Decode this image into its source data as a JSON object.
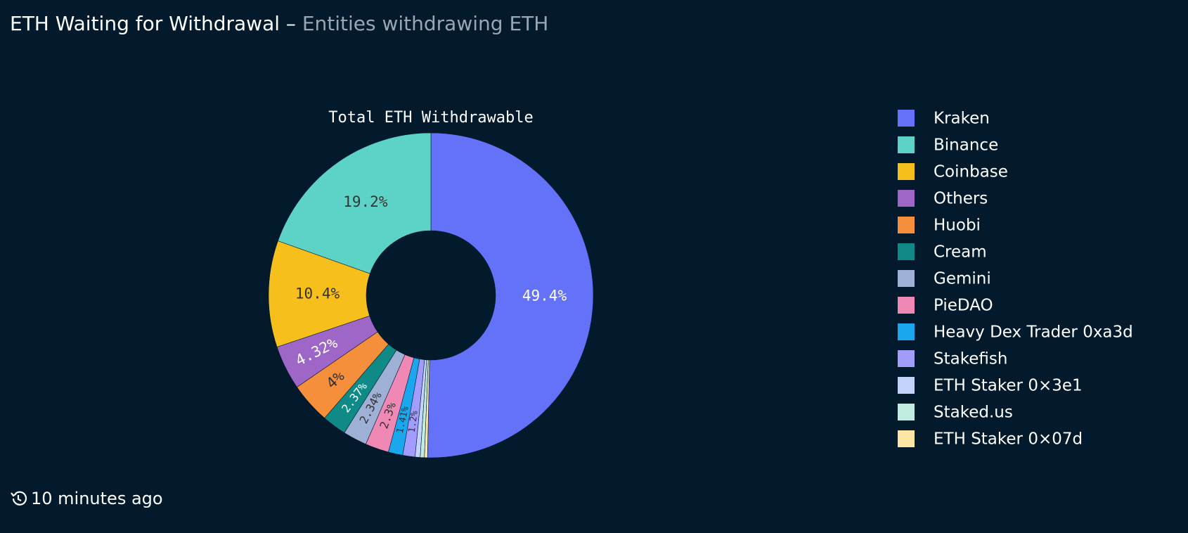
{
  "header": {
    "title": "ETH Waiting for Withdrawal",
    "separator": "–",
    "subtitle": "Entities withdrawing ETH"
  },
  "chart_data": {
    "type": "pie",
    "title": "Total ETH Withdrawable",
    "donut": true,
    "categories": [
      "Kraken",
      "Binance",
      "Coinbase",
      "Others",
      "Huobi",
      "Cream",
      "Gemini",
      "PieDAO",
      "Heavy Dex Trader 0xa3d",
      "Stakefish",
      "ETH Staker 0×3e1",
      "Staked.us",
      "ETH Staker 0×07d"
    ],
    "values": [
      49.4,
      19.2,
      10.4,
      4.32,
      4,
      2.37,
      2.34,
      2.3,
      1.41,
      1.2,
      0.5,
      0.4,
      0.3
    ],
    "value_labels": [
      "49.4%",
      "19.2%",
      "10.4%",
      "4.32%",
      "4%",
      "2.37%",
      "2.34%",
      "2.3%",
      "1.41%",
      "1.2%",
      null,
      null,
      null
    ],
    "colors": [
      "#6471f9",
      "#5dd3c8",
      "#f6bf1b",
      "#9d66c7",
      "#f68f3c",
      "#0f8a87",
      "#9fb0d6",
      "#f088b6",
      "#1aa7ee",
      "#a29dfc",
      "#c3d3fb",
      "#c0ede0",
      "#fde6a3"
    ],
    "legend": "right"
  },
  "footer": {
    "updated": "10 minutes ago"
  }
}
